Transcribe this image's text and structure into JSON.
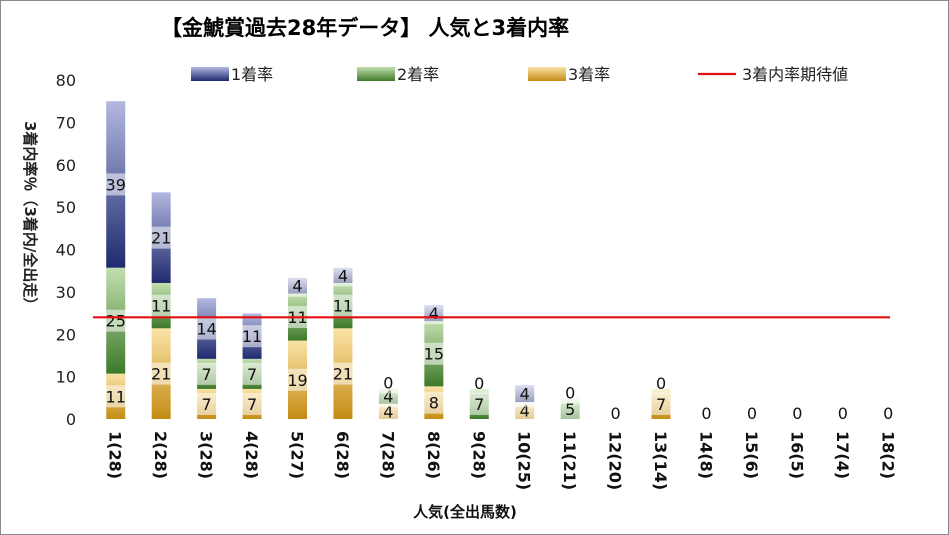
{
  "chart_data": {
    "type": "bar",
    "title": "【金鯱賞過去28年データ】 人気と3着内率",
    "xlabel": "人気(全出馬数)",
    "ylabel": "3着内率％（3着内/全出走）",
    "ylim": [
      0,
      80
    ],
    "yticks": [
      0,
      10,
      20,
      30,
      40,
      50,
      60,
      70,
      80
    ],
    "categories": [
      "1(28)",
      "2(28)",
      "3(28)",
      "4(28)",
      "5(27)",
      "6(28)",
      "7(28)",
      "8(26)",
      "9(28)",
      "10(25)",
      "11(21)",
      "12(20)",
      "13(14)",
      "14(8)",
      "15(6)",
      "16(5)",
      "17(4)",
      "18(2)"
    ],
    "series": [
      {
        "name": "3着率",
        "color": "#e0a830",
        "values": [
          10.7,
          21.4,
          7.1,
          7.1,
          18.5,
          21.4,
          3.6,
          7.7,
          0,
          4.0,
          0,
          0,
          7.1,
          0,
          0,
          0,
          0,
          0
        ],
        "labels": [
          "11",
          "21",
          "7",
          "7",
          "19",
          "21",
          "4",
          "8",
          "0",
          "4",
          "0",
          "0",
          "7",
          "0",
          "0",
          "0",
          "0",
          "0"
        ]
      },
      {
        "name": "2着率",
        "color": "#5e9a45",
        "values": [
          25.0,
          10.7,
          7.1,
          7.1,
          11.1,
          10.7,
          3.6,
          15.4,
          7.1,
          0,
          4.8,
          0,
          0,
          0,
          0,
          0,
          0,
          0
        ],
        "labels": [
          "25",
          "11",
          "7",
          "7",
          "11",
          "11",
          "4",
          "15",
          "7",
          "0",
          "5",
          "",
          "",
          "",
          "",
          "",
          "",
          ""
        ]
      },
      {
        "name": "1着率",
        "color": "#3a4a95",
        "values": [
          39.3,
          21.4,
          14.3,
          10.7,
          3.7,
          3.6,
          0,
          3.8,
          0,
          4.0,
          0,
          0,
          0,
          0,
          0,
          0,
          0,
          0
        ],
        "labels": [
          "39",
          "21",
          "14",
          "11",
          "4",
          "4",
          "0",
          "4",
          "0",
          "4",
          "0",
          "",
          "0",
          "",
          "",
          "",
          "",
          ""
        ]
      }
    ],
    "reference_line": {
      "name": "3着内率期待値",
      "value": 24,
      "color": "#e01010"
    },
    "legend": [
      "1着率",
      "2着率",
      "3着率",
      "3着内率期待値"
    ],
    "legend_position": "top",
    "grid": false
  }
}
